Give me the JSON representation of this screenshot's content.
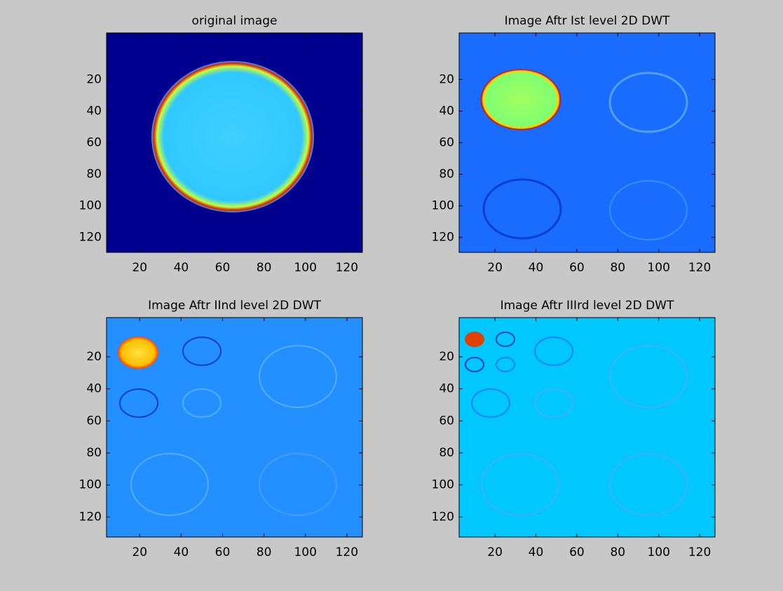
{
  "chart_data": [
    {
      "type": "image",
      "title": "original image",
      "xlim": [
        4,
        127.5
      ],
      "ylim": [
        129.5,
        -9.5
      ],
      "xticks": [
        20,
        40,
        60,
        80,
        100,
        120
      ],
      "yticks": [
        20,
        40,
        60,
        80,
        100,
        120
      ]
    },
    {
      "type": "image",
      "title": "Image Aftr Ist level 2D DWT",
      "xlim": [
        2.5,
        127.5
      ],
      "ylim": [
        129.5,
        -9.5
      ],
      "xticks": [
        20,
        40,
        60,
        80,
        100,
        120
      ],
      "yticks": [
        20,
        40,
        60,
        80,
        100,
        120
      ]
    },
    {
      "type": "image",
      "title": "Image Aftr IInd level 2D DWT",
      "xlim": [
        4,
        127.5
      ],
      "ylim": [
        132.5,
        -4.5
      ],
      "xticks": [
        20,
        40,
        60,
        80,
        100,
        120
      ],
      "yticks": [
        20,
        40,
        60,
        80,
        100,
        120
      ]
    },
    {
      "type": "image",
      "title": "Image Aftr IIIrd level 2D DWT",
      "xlim": [
        2.5,
        127.5
      ],
      "ylim": [
        132.5,
        -4.5
      ],
      "xticks": [
        20,
        40,
        60,
        80,
        100,
        120
      ],
      "yticks": [
        20,
        40,
        60,
        80,
        100,
        120
      ]
    }
  ]
}
